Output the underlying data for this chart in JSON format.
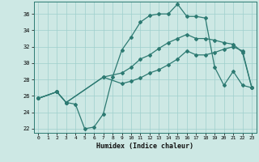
{
  "xlabel": "Humidex (Indice chaleur)",
  "xlim": [
    -0.5,
    23.5
  ],
  "ylim": [
    21.5,
    37.5
  ],
  "yticks": [
    22,
    24,
    26,
    28,
    30,
    32,
    34,
    36
  ],
  "xticks": [
    0,
    1,
    2,
    3,
    4,
    5,
    6,
    7,
    8,
    9,
    10,
    11,
    12,
    13,
    14,
    15,
    16,
    17,
    18,
    19,
    20,
    21,
    22,
    23
  ],
  "bg_color": "#cde8e4",
  "grid_color": "#9ecfcc",
  "line_color": "#2d7a72",
  "line1_x": [
    0,
    2,
    3,
    4,
    5,
    6,
    7,
    8,
    9,
    10,
    11,
    12,
    13,
    14,
    15,
    16,
    17,
    18,
    19,
    20,
    21,
    22,
    23
  ],
  "line1_y": [
    25.7,
    26.5,
    25.2,
    25.0,
    22.0,
    22.2,
    23.8,
    28.3,
    31.6,
    33.2,
    35.0,
    35.8,
    36.0,
    36.0,
    37.2,
    35.7,
    35.7,
    35.5,
    29.5,
    27.3,
    29.0,
    27.3,
    27.0
  ],
  "line2_x": [
    0,
    2,
    3,
    7,
    9,
    10,
    11,
    12,
    13,
    14,
    15,
    16,
    17,
    18,
    19,
    20,
    21,
    22,
    23
  ],
  "line2_y": [
    25.7,
    26.5,
    25.2,
    28.3,
    28.8,
    29.5,
    30.5,
    31.0,
    31.8,
    32.5,
    33.0,
    33.5,
    33.0,
    33.0,
    32.8,
    32.5,
    32.3,
    31.3,
    27.0
  ],
  "line3_x": [
    0,
    2,
    3,
    7,
    9,
    10,
    11,
    12,
    13,
    14,
    15,
    16,
    17,
    18,
    19,
    20,
    21,
    22,
    23
  ],
  "line3_y": [
    25.7,
    26.5,
    25.2,
    28.3,
    27.5,
    27.8,
    28.2,
    28.8,
    29.2,
    29.8,
    30.5,
    31.5,
    31.0,
    31.0,
    31.3,
    31.7,
    32.0,
    31.5,
    27.0
  ]
}
